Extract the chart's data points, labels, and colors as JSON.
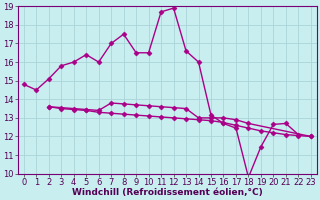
{
  "xlabel": "Windchill (Refroidissement éolien,°C)",
  "ylabel": "",
  "bg_color": "#c8eef0",
  "line_color": "#aa0088",
  "xlim": [
    -0.5,
    23.5
  ],
  "ylim": [
    10,
    19
  ],
  "xticks": [
    0,
    1,
    2,
    3,
    4,
    5,
    6,
    7,
    8,
    9,
    10,
    11,
    12,
    13,
    14,
    15,
    16,
    17,
    18,
    19,
    20,
    21,
    22,
    23
  ],
  "yticks": [
    10,
    11,
    12,
    13,
    14,
    15,
    16,
    17,
    18,
    19
  ],
  "line1_x": [
    0,
    1,
    2,
    3,
    4,
    5,
    6,
    7,
    8,
    9,
    10,
    11,
    12,
    13,
    14,
    15,
    16,
    17,
    18,
    19,
    20,
    21,
    22
  ],
  "line1_y": [
    14.8,
    14.5,
    15.1,
    15.8,
    16.0,
    16.4,
    16.0,
    17.0,
    17.5,
    16.5,
    16.5,
    18.7,
    18.9,
    16.6,
    16.0,
    13.15,
    12.7,
    12.45,
    9.8,
    11.45,
    12.65,
    12.7,
    12.1
  ],
  "line2_x": [
    2,
    3,
    4,
    5,
    6,
    7,
    8,
    9,
    10,
    11,
    12,
    13,
    14,
    15,
    16,
    17,
    18,
    23
  ],
  "line2_y": [
    13.6,
    13.55,
    13.5,
    13.45,
    13.4,
    13.8,
    13.75,
    13.7,
    13.65,
    13.6,
    13.55,
    13.5,
    13.0,
    13.0,
    13.0,
    12.9,
    12.7,
    12.0
  ],
  "line3_x": [
    2,
    3,
    4,
    5,
    6,
    7,
    8,
    9,
    10,
    11,
    12,
    13,
    14,
    15,
    16,
    17,
    18,
    19,
    20,
    21,
    22,
    23
  ],
  "line3_y": [
    13.6,
    13.5,
    13.45,
    13.4,
    13.3,
    13.25,
    13.2,
    13.15,
    13.1,
    13.05,
    13.0,
    12.95,
    12.9,
    12.85,
    12.75,
    12.6,
    12.45,
    12.3,
    12.2,
    12.1,
    12.05,
    12.0
  ],
  "grid_color": "#aad4d8",
  "marker": "D",
  "markersize": 2.5,
  "linewidth": 1.0,
  "xlabel_fontsize": 6.5,
  "tick_fontsize": 6.0
}
